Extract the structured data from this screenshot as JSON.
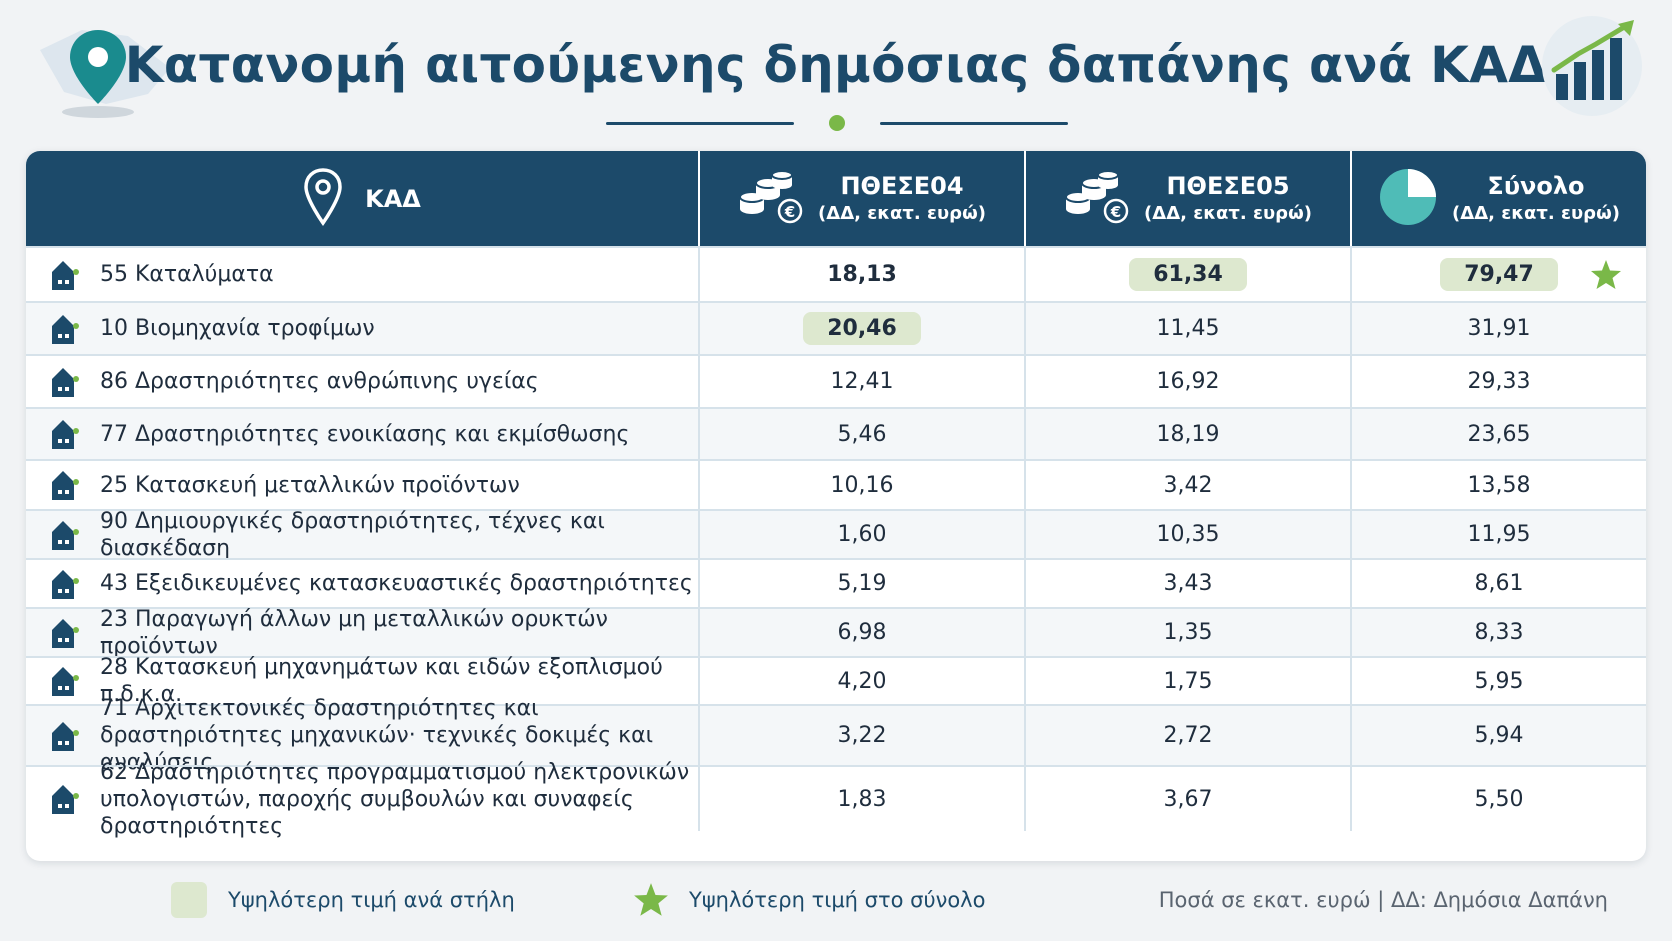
{
  "title": "Κατανομή αιτούμενης δημόσιας δαπάνης ανά ΚΑΔ",
  "header": {
    "kad": "ΚΑΔ",
    "col1_main": "ΠΘΕΣΕ04",
    "col1_sub": "(ΔΔ, εκατ. ευρώ)",
    "col2_main": "ΠΘΕΣΕ05",
    "col2_sub": "(ΔΔ, εκατ. ευρώ)",
    "col3_main": "Σύνολο",
    "col3_sub": "(ΔΔ, εκατ. ευρώ)"
  },
  "rows": [
    {
      "kad": "55 Καταλύματα",
      "v1": "18,13",
      "v2": "61,34",
      "v3": "79,47"
    },
    {
      "kad": "10 Βιομηχανία τροφίμων",
      "v1": "20,46",
      "v2": "11,45",
      "v3": "31,91"
    },
    {
      "kad": "86 Δραστηριότητες ανθρώπινης υγείας",
      "v1": "12,41",
      "v2": "16,92",
      "v3": "29,33"
    },
    {
      "kad": "77 Δραστηριότητες ενοικίασης και εκμίσθωσης",
      "v1": "5,46",
      "v2": "18,19",
      "v3": "23,65"
    },
    {
      "kad": "25 Κατασκευή μεταλλικών προϊόντων",
      "v1": "10,16",
      "v2": "3,42",
      "v3": "13,58"
    },
    {
      "kad": "90 Δημιουργικές δραστηριότητες, τέχνες και διασκέδαση",
      "v1": "1,60",
      "v2": "10,35",
      "v3": "11,95"
    },
    {
      "kad": "43 Εξειδικευμένες κατασκευαστικές δραστηριότητες",
      "v1": "5,19",
      "v2": "3,43",
      "v3": "8,61"
    },
    {
      "kad": "23 Παραγωγή άλλων μη μεταλλικών ορυκτών προϊόντων",
      "v1": "6,98",
      "v2": "1,35",
      "v3": "8,33"
    },
    {
      "kad": "28 Κατασκευή μηχανημάτων και ειδών εξοπλισμού π.δ.κ.α.",
      "v1": "4,20",
      "v2": "1,75",
      "v3": "5,95"
    },
    {
      "kad": "71 Αρχιτεκτονικές δραστηριότητες και δραστηριότητες μηχανικών· τεχνικές δοκιμές και αναλύσεις",
      "v1": "3,22",
      "v2": "2,72",
      "v3": "5,94"
    },
    {
      "kad": "62 Δραστηριότητες προγραμματισμού ηλεκτρονικών υπολογιστών, παροχής συμβουλών και συναφείς δραστηριότητες",
      "v1": "1,83",
      "v2": "3,67",
      "v3": "5,50"
    }
  ],
  "legend": {
    "column_max": "Υψηλότερη τιμή ανά στήλη",
    "total_max": "Υψηλότερη τιμή στο σύνολο"
  },
  "footnote": "Ποσά σε εκατ. ευρώ | ΔΔ: Δημόσια Δαπάνη",
  "colors": {
    "primary": "#1c4a6a",
    "accent_green": "#7ab848",
    "highlight": "#dde8cf",
    "teal": "#4fbcb7"
  },
  "icons": {
    "header_left": "map-pin-icon",
    "header_right": "bar-chart-icon",
    "kad_header": "location-pin-icon",
    "col1": "coins-euro-icon",
    "col2": "coins-euro-icon",
    "col3": "pie-chart-icon",
    "row": "building-icon",
    "total_max": "star-icon"
  }
}
